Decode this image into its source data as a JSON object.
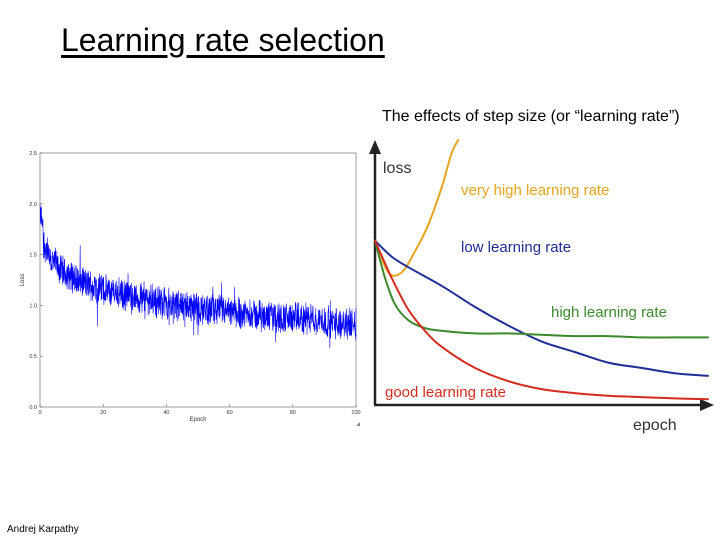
{
  "slide": {
    "title": "Learning rate selection",
    "subtitle": "The effects of step size (or “learning rate”)",
    "author": "Andrej Karpathy"
  },
  "chart_data": [
    {
      "type": "line",
      "xlabel": "Epoch",
      "ylabel": "Loss",
      "xlim": [
        0,
        100
      ],
      "ylim": [
        0.0,
        2.5
      ],
      "x_ticks": [
        "0",
        "20",
        "40",
        "60",
        "80",
        "100"
      ],
      "y_ticks": [
        "0.0",
        "0.5",
        "1.0",
        "1.5",
        "2.0",
        "2.5"
      ],
      "grid": false,
      "color": "#0000ff",
      "noisy_trend": {
        "x": [
          0,
          1,
          3,
          5,
          8,
          12,
          16,
          20,
          25,
          30,
          35,
          40,
          45,
          50,
          55,
          60,
          65,
          70,
          75,
          80,
          85,
          90,
          95,
          100
        ],
        "y": [
          1.9,
          1.65,
          1.45,
          1.4,
          1.32,
          1.25,
          1.2,
          1.15,
          1.12,
          1.08,
          1.05,
          1.02,
          1.0,
          0.97,
          0.95,
          0.93,
          0.92,
          0.9,
          0.88,
          0.87,
          0.86,
          0.84,
          0.83,
          0.82
        ]
      }
    },
    {
      "type": "line",
      "xlabel": "epoch",
      "ylabel": "loss",
      "series": [
        {
          "name": "very high learning rate",
          "color": "#e6a51f",
          "x": [
            0,
            0.04,
            0.08,
            0.12,
            0.16,
            0.2,
            0.23,
            0.25
          ],
          "y": [
            0.62,
            0.5,
            0.5,
            0.58,
            0.68,
            0.82,
            0.95,
            1.0
          ]
        },
        {
          "name": "low learning rate",
          "color": "#1f2f96",
          "x": [
            0,
            0.05,
            0.1,
            0.2,
            0.3,
            0.4,
            0.5,
            0.6,
            0.7,
            0.8,
            0.9,
            1.0
          ],
          "y": [
            0.62,
            0.56,
            0.52,
            0.45,
            0.37,
            0.3,
            0.24,
            0.2,
            0.16,
            0.14,
            0.12,
            0.11
          ]
        },
        {
          "name": "high learning rate",
          "color": "#3c8a2e",
          "x": [
            0,
            0.03,
            0.06,
            0.1,
            0.15,
            0.2,
            0.3,
            0.4,
            0.5,
            0.6,
            0.7,
            0.8,
            0.9,
            1.0
          ],
          "y": [
            0.62,
            0.48,
            0.38,
            0.32,
            0.29,
            0.28,
            0.27,
            0.27,
            0.265,
            0.26,
            0.26,
            0.255,
            0.255,
            0.255
          ]
        },
        {
          "name": "good learning rate",
          "color": "#d42b1f",
          "x": [
            0,
            0.05,
            0.1,
            0.15,
            0.2,
            0.3,
            0.4,
            0.5,
            0.6,
            0.7,
            0.8,
            0.9,
            1.0
          ],
          "y": [
            0.62,
            0.48,
            0.36,
            0.28,
            0.22,
            0.14,
            0.09,
            0.06,
            0.045,
            0.035,
            0.03,
            0.025,
            0.022
          ]
        }
      ]
    }
  ]
}
